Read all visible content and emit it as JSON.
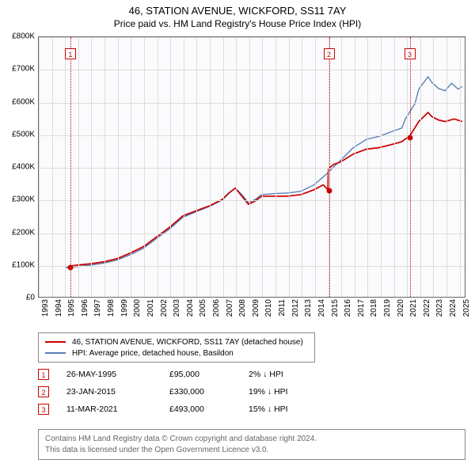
{
  "title": "46, STATION AVENUE, WICKFORD, SS11 7AY",
  "subtitle": "Price paid vs. HM Land Registry's House Price Index (HPI)",
  "chart": {
    "type": "line",
    "background_color": "#fbfbfd",
    "grid_color": "#dddddd",
    "border_color": "#666666",
    "x_years": [
      1993,
      1994,
      1995,
      1996,
      1997,
      1998,
      1999,
      2000,
      2001,
      2002,
      2003,
      2004,
      2005,
      2006,
      2007,
      2008,
      2009,
      2010,
      2011,
      2012,
      2013,
      2014,
      2015,
      2016,
      2017,
      2018,
      2019,
      2020,
      2021,
      2022,
      2023,
      2024,
      2025
    ],
    "xlim": [
      1993,
      2025.5
    ],
    "ylim": [
      0,
      800000
    ],
    "ytick_step": 100000,
    "ytick_labels": [
      "£0",
      "£100K",
      "£200K",
      "£300K",
      "£400K",
      "£500K",
      "£600K",
      "£700K",
      "£800K"
    ],
    "series": [
      {
        "name": "46, STATION AVENUE, WICKFORD, SS11 7AY (detached house)",
        "color": "#cc0000",
        "width": 1.6,
        "data": [
          [
            1995.4,
            95000
          ],
          [
            1996,
            98000
          ],
          [
            1997,
            102000
          ],
          [
            1998,
            108000
          ],
          [
            1999,
            118000
          ],
          [
            2000,
            135000
          ],
          [
            2001,
            155000
          ],
          [
            2002,
            185000
          ],
          [
            2003,
            215000
          ],
          [
            2004,
            250000
          ],
          [
            2005,
            265000
          ],
          [
            2006,
            280000
          ],
          [
            2007,
            300000
          ],
          [
            2007.5,
            320000
          ],
          [
            2008,
            335000
          ],
          [
            2008.5,
            310000
          ],
          [
            2009,
            285000
          ],
          [
            2009.5,
            295000
          ],
          [
            2010,
            310000
          ],
          [
            2011,
            310000
          ],
          [
            2012,
            310000
          ],
          [
            2013,
            315000
          ],
          [
            2014,
            330000
          ],
          [
            2014.7,
            345000
          ],
          [
            2015.06,
            330000
          ],
          [
            2015.1,
            395000
          ],
          [
            2015.5,
            408000
          ],
          [
            2016,
            415000
          ],
          [
            2017,
            440000
          ],
          [
            2018,
            455000
          ],
          [
            2019,
            460000
          ],
          [
            2020,
            470000
          ],
          [
            2020.7,
            478000
          ],
          [
            2021.2,
            493000
          ],
          [
            2021.3,
            495000
          ],
          [
            2022,
            540000
          ],
          [
            2022.7,
            568000
          ],
          [
            2023,
            555000
          ],
          [
            2023.5,
            545000
          ],
          [
            2024,
            540000
          ],
          [
            2024.7,
            548000
          ],
          [
            2025.3,
            540000
          ]
        ]
      },
      {
        "name": "HPI: Average price, detached house, Basildon",
        "color": "#5a7fb5",
        "width": 1.4,
        "data": [
          [
            1995,
            90000
          ],
          [
            1996,
            93000
          ],
          [
            1997,
            98000
          ],
          [
            1998,
            104000
          ],
          [
            1999,
            114000
          ],
          [
            2000,
            130000
          ],
          [
            2001,
            150000
          ],
          [
            2002,
            180000
          ],
          [
            2003,
            210000
          ],
          [
            2004,
            245000
          ],
          [
            2005,
            262000
          ],
          [
            2006,
            278000
          ],
          [
            2007,
            298000
          ],
          [
            2007.5,
            318000
          ],
          [
            2008,
            335000
          ],
          [
            2008.5,
            315000
          ],
          [
            2009,
            290000
          ],
          [
            2009.5,
            300000
          ],
          [
            2010,
            315000
          ],
          [
            2011,
            318000
          ],
          [
            2012,
            320000
          ],
          [
            2013,
            325000
          ],
          [
            2014,
            345000
          ],
          [
            2015,
            380000
          ],
          [
            2016,
            420000
          ],
          [
            2017,
            460000
          ],
          [
            2018,
            485000
          ],
          [
            2019,
            495000
          ],
          [
            2020,
            510000
          ],
          [
            2020.7,
            520000
          ],
          [
            2021,
            550000
          ],
          [
            2021.7,
            595000
          ],
          [
            2022,
            640000
          ],
          [
            2022.7,
            678000
          ],
          [
            2023,
            660000
          ],
          [
            2023.5,
            642000
          ],
          [
            2024,
            635000
          ],
          [
            2024.5,
            658000
          ],
          [
            2025,
            640000
          ],
          [
            2025.3,
            648000
          ]
        ]
      }
    ],
    "transaction_points": [
      {
        "x": 1995.4,
        "y": 95000
      },
      {
        "x": 2015.06,
        "y": 330000
      },
      {
        "x": 2021.2,
        "y": 493000
      }
    ],
    "event_lines": [
      {
        "index": 1,
        "x": 1995.4
      },
      {
        "index": 2,
        "x": 2015.06
      },
      {
        "index": 3,
        "x": 2021.2
      }
    ],
    "event_line_color": "#cc0000"
  },
  "legend": {
    "items": [
      {
        "color": "#cc0000",
        "label": "46, STATION AVENUE, WICKFORD, SS11 7AY (detached house)"
      },
      {
        "color": "#5a7fb5",
        "label": "HPI: Average price, detached house, Basildon"
      }
    ]
  },
  "events": [
    {
      "index": "1",
      "date": "26-MAY-1995",
      "price": "£95,000",
      "diff": "2%",
      "dir": "↓",
      "suffix": "HPI"
    },
    {
      "index": "2",
      "date": "23-JAN-2015",
      "price": "£330,000",
      "diff": "19%",
      "dir": "↓",
      "suffix": "HPI"
    },
    {
      "index": "3",
      "date": "11-MAR-2021",
      "price": "£493,000",
      "diff": "15%",
      "dir": "↓",
      "suffix": "HPI"
    }
  ],
  "attribution": {
    "line1": "Contains HM Land Registry data © Crown copyright and database right 2024.",
    "line2": "This data is licensed under the Open Government Licence v3.0."
  }
}
